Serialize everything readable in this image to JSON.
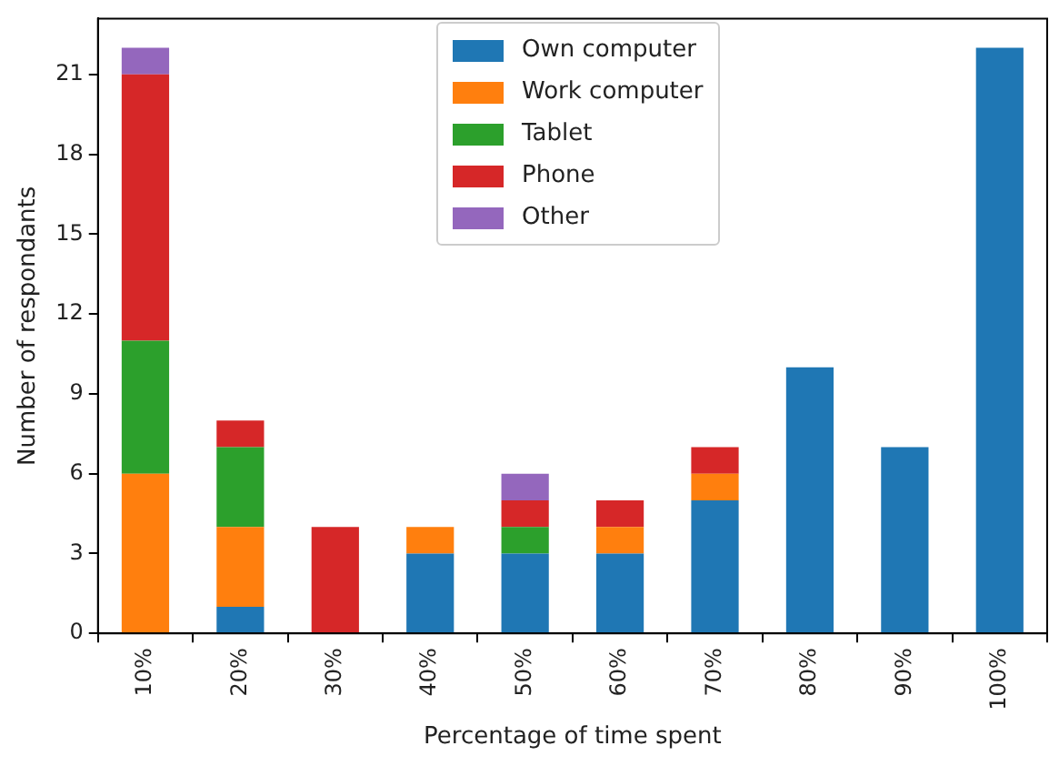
{
  "chart_data": {
    "type": "bar",
    "stacked": true,
    "xlabel": "Percentage of time spent",
    "ylabel": "Number of respondants",
    "categories": [
      "10%",
      "20%",
      "30%",
      "40%",
      "50%",
      "60%",
      "70%",
      "80%",
      "90%",
      "100%"
    ],
    "series": [
      {
        "name": "Own computer",
        "color": "#1f77b4",
        "values": [
          0,
          1,
          0,
          3,
          3,
          3,
          5,
          10,
          7,
          22
        ]
      },
      {
        "name": "Work computer",
        "color": "#ff7f0e",
        "values": [
          6,
          3,
          0,
          1,
          0,
          1,
          1,
          0,
          0,
          0
        ]
      },
      {
        "name": "Tablet",
        "color": "#2ca02c",
        "values": [
          5,
          3,
          0,
          0,
          1,
          0,
          0,
          0,
          0,
          0
        ]
      },
      {
        "name": "Phone",
        "color": "#d62728",
        "values": [
          10,
          1,
          4,
          0,
          1,
          1,
          1,
          0,
          0,
          0
        ]
      },
      {
        "name": "Other",
        "color": "#9467bd",
        "values": [
          1,
          0,
          0,
          0,
          1,
          0,
          0,
          0,
          0,
          0
        ]
      }
    ],
    "ylim": [
      0,
      23.1
    ],
    "yticks": [
      0,
      3,
      6,
      9,
      12,
      15,
      18,
      21
    ],
    "grid": false,
    "legend": "top"
  }
}
